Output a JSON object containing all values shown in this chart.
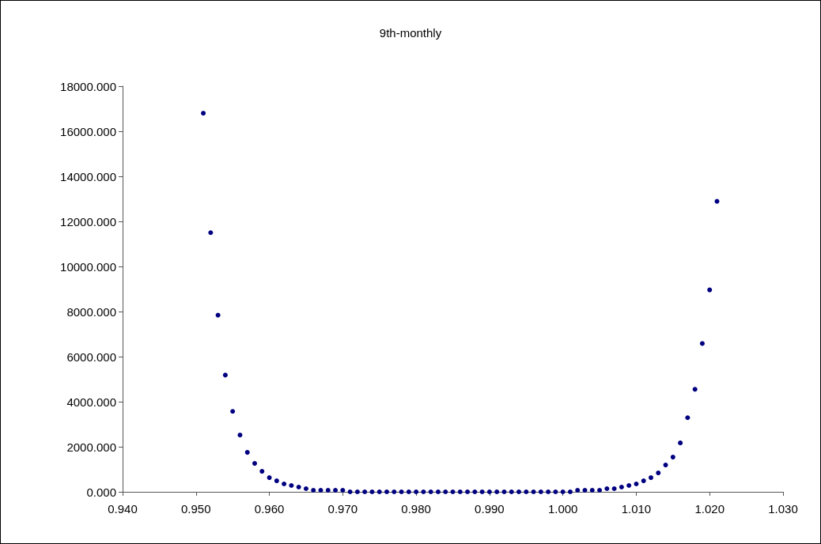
{
  "chart_data": {
    "type": "scatter",
    "title": "9th-monthly",
    "x": [
      0.951,
      0.952,
      0.953,
      0.954,
      0.955,
      0.956,
      0.957,
      0.958,
      0.959,
      0.96,
      0.961,
      0.962,
      0.963,
      0.964,
      0.965,
      0.966,
      0.967,
      0.968,
      0.969,
      0.97,
      0.971,
      0.972,
      0.973,
      0.974,
      0.975,
      0.976,
      0.977,
      0.978,
      0.979,
      0.98,
      0.981,
      0.982,
      0.983,
      0.984,
      0.985,
      0.986,
      0.987,
      0.988,
      0.989,
      0.99,
      0.991,
      0.992,
      0.993,
      0.994,
      0.995,
      0.996,
      0.997,
      0.998,
      0.999,
      1.0,
      1.001,
      1.002,
      1.003,
      1.004,
      1.005,
      1.006,
      1.007,
      1.008,
      1.009,
      1.01,
      1.011,
      1.012,
      1.013,
      1.014,
      1.015,
      1.016,
      1.017,
      1.018,
      1.019,
      1.02,
      1.021
    ],
    "series": [
      {
        "color": "#000080",
        "values": [
          16800,
          11500,
          7840,
          5180,
          3570,
          2520,
          1750,
          1260,
          910,
          630,
          490,
          350,
          280,
          210,
          140,
          70,
          70,
          70,
          70,
          70,
          0,
          0,
          0,
          0,
          0,
          0,
          0,
          0,
          0,
          0,
          0,
          0,
          0,
          0,
          0,
          0,
          0,
          0,
          0,
          0,
          0,
          0,
          0,
          0,
          0,
          0,
          0,
          0,
          0,
          0,
          0,
          70,
          70,
          70,
          70,
          140,
          140,
          210,
          280,
          350,
          490,
          630,
          840,
          1190,
          1540,
          2170,
          3290,
          4550,
          6580,
          8960,
          12890
        ]
      }
    ],
    "xlim": [
      0.94,
      1.03
    ],
    "xticks": [
      {
        "value": 0.94,
        "label": "0.940"
      },
      {
        "value": 0.95,
        "label": "0.950"
      },
      {
        "value": 0.96,
        "label": "0.960"
      },
      {
        "value": 0.97,
        "label": "0.970"
      },
      {
        "value": 0.98,
        "label": "0.980"
      },
      {
        "value": 0.99,
        "label": "0.990"
      },
      {
        "value": 1.0,
        "label": "1.000"
      },
      {
        "value": 1.01,
        "label": "1.010"
      },
      {
        "value": 1.02,
        "label": "1.020"
      },
      {
        "value": 1.03,
        "label": "1.030"
      }
    ],
    "ylim": [
      0,
      18000
    ],
    "yticks": [
      {
        "value": 0,
        "label": "0.000"
      },
      {
        "value": 2000,
        "label": "2000.000"
      },
      {
        "value": 4000,
        "label": "4000.000"
      },
      {
        "value": 6000,
        "label": "6000.000"
      },
      {
        "value": 8000,
        "label": "8000.000"
      },
      {
        "value": 10000,
        "label": "10000.000"
      },
      {
        "value": 12000,
        "label": "12000.000"
      },
      {
        "value": 14000,
        "label": "14000.000"
      },
      {
        "value": 16000,
        "label": "16000.000"
      },
      {
        "value": 18000,
        "label": "18000.000"
      }
    ],
    "marker": "circle"
  }
}
